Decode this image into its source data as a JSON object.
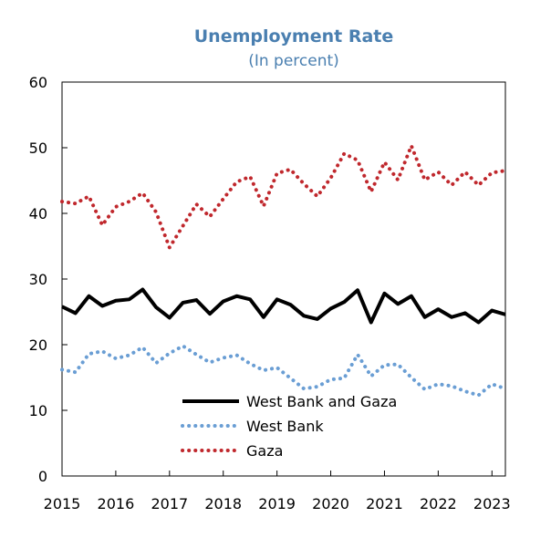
{
  "chart_data": {
    "type": "line",
    "title": "Unemployment Rate",
    "subtitle": "(In percent)",
    "xlabel": "",
    "ylabel": "",
    "xlim": [
      2015,
      2023.25
    ],
    "ylim": [
      0,
      60
    ],
    "yticks": [
      0,
      10,
      20,
      30,
      40,
      50,
      60
    ],
    "xticks": [
      2015,
      2016,
      2017,
      2018,
      2019,
      2020,
      2021,
      2022,
      2023
    ],
    "xtick_labels": [
      "2015",
      "2016",
      "2017",
      "2018",
      "2019",
      "2020",
      "2021",
      "2022",
      "2023"
    ],
    "grid": false,
    "legend_position": "bottom-center",
    "x": [
      2015.0,
      2015.25,
      2015.5,
      2015.75,
      2016.0,
      2016.25,
      2016.5,
      2016.75,
      2017.0,
      2017.25,
      2017.5,
      2017.75,
      2018.0,
      2018.25,
      2018.5,
      2018.75,
      2019.0,
      2019.25,
      2019.5,
      2019.75,
      2020.0,
      2020.25,
      2020.5,
      2020.75,
      2021.0,
      2021.25,
      2021.5,
      2021.75,
      2022.0,
      2022.25,
      2022.5,
      2022.75,
      2023.0,
      2023.25
    ],
    "series": [
      {
        "name": "West Bank and Gaza",
        "color": "#000000",
        "style": "solid",
        "values": [
          25.8,
          24.8,
          27.4,
          25.9,
          26.7,
          26.9,
          28.4,
          25.7,
          24.1,
          26.4,
          26.8,
          24.7,
          26.6,
          27.4,
          26.9,
          24.2,
          26.9,
          26.1,
          24.4,
          23.9,
          25.5,
          26.5,
          28.3,
          23.4,
          27.8,
          26.2,
          27.4,
          24.2,
          25.4,
          24.2,
          24.8,
          23.4,
          25.2,
          24.6
        ]
      },
      {
        "name": "West Bank",
        "color": "#6a9ed4",
        "style": "dotted",
        "values": [
          16.2,
          15.8,
          18.6,
          19.0,
          17.9,
          18.4,
          19.6,
          17.2,
          18.7,
          19.8,
          18.5,
          17.3,
          18.0,
          18.4,
          17.1,
          16.1,
          16.5,
          14.9,
          13.3,
          13.6,
          14.7,
          14.9,
          18.5,
          15.2,
          16.9,
          17.0,
          15.0,
          13.2,
          14.0,
          13.7,
          12.9,
          12.3,
          14.0,
          13.3
        ]
      },
      {
        "name": "Gaza",
        "color": "#c0282d",
        "style": "dotted",
        "values": [
          41.8,
          41.5,
          42.6,
          38.2,
          41.0,
          41.8,
          43.1,
          40.2,
          34.8,
          38.1,
          41.4,
          39.5,
          42.2,
          44.8,
          45.6,
          41.1,
          46.1,
          46.7,
          44.5,
          42.6,
          45.4,
          49.1,
          48.1,
          43.3,
          47.8,
          45.1,
          50.3,
          45.1,
          46.3,
          44.3,
          46.3,
          44.3,
          46.2,
          46.5
        ]
      }
    ]
  }
}
